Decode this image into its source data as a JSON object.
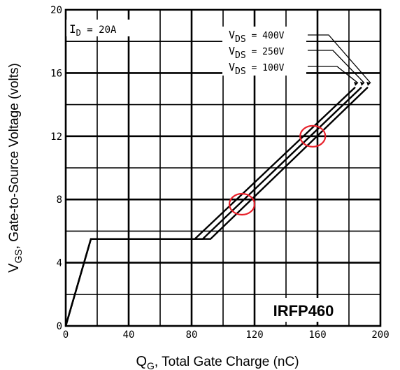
{
  "chart_data": {
    "type": "line",
    "title": "",
    "xlabel": {
      "main": "Q",
      "sub": "G",
      "rest": ", Total Gate Charge (nC)"
    },
    "ylabel": {
      "main": "V",
      "sub": "GS",
      "rest": ", Gate-to-Source Voltage (volts)"
    },
    "xlim": [
      0,
      200
    ],
    "ylim": [
      0,
      20
    ],
    "x_ticks": [
      0,
      40,
      80,
      120,
      160,
      200
    ],
    "y_ticks": [
      0,
      4,
      8,
      12,
      16,
      20
    ],
    "grid": true,
    "condition": {
      "main": "I",
      "sub": "D",
      "rest": " = 20A"
    },
    "part_number": "IRFP460",
    "series": [
      {
        "name": {
          "main": "V",
          "sub": "DS",
          "rest": " = 400V"
        },
        "points": [
          [
            0,
            0
          ],
          [
            16,
            5.5
          ],
          [
            92,
            5.5
          ],
          [
            192,
            15.1
          ]
        ]
      },
      {
        "name": {
          "main": "V",
          "sub": "DS",
          "rest": " = 250V"
        },
        "points": [
          [
            0,
            0
          ],
          [
            16,
            5.5
          ],
          [
            87,
            5.5
          ],
          [
            188,
            15.1
          ]
        ]
      },
      {
        "name": {
          "main": "V",
          "sub": "DS",
          "rest": " = 100V"
        },
        "points": [
          [
            0,
            0
          ],
          [
            16,
            5.5
          ],
          [
            82,
            5.5
          ],
          [
            184,
            15.1
          ]
        ]
      }
    ],
    "highlights": [
      {
        "x": 112,
        "y": 7.7,
        "color": "#e8202a"
      },
      {
        "x": 157,
        "y": 12.0,
        "color": "#e8202a"
      }
    ]
  }
}
